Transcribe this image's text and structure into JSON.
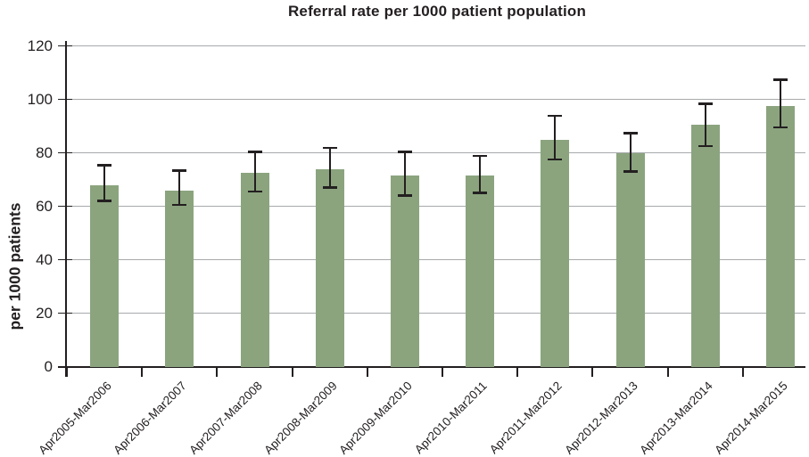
{
  "title": "Referral rate per 1000 patient population",
  "chart_data": {
    "type": "bar",
    "title": "Referral rate per 1000 patient population",
    "xlabel": "",
    "ylabel": "per 1000 patients",
    "ylim": [
      0,
      120
    ],
    "ytick_step": 20,
    "yticks": [
      0,
      20,
      40,
      60,
      80,
      100,
      120
    ],
    "grid": "horizontal",
    "legend": "none",
    "categories": [
      "Apr2005-Mar2006",
      "Apr2006-Mar2007",
      "Apr2007-Mar2008",
      "Apr2008-Mar2009",
      "Apr2009-Mar2010",
      "Apr2010-Mar2011",
      "Apr2011-Mar2012",
      "Apr2012-Mar2013",
      "Apr2013-Mar2014",
      "Apr2014-Mar2015"
    ],
    "values": [
      68,
      66,
      72.5,
      74,
      71.5,
      71.5,
      85,
      80,
      90.5,
      97.5
    ],
    "error_low": [
      62,
      60.5,
      65.5,
      67,
      64,
      65,
      77.5,
      73,
      82.5,
      89.5
    ],
    "error_high": [
      75.5,
      73.5,
      80.5,
      82,
      80.5,
      79,
      94,
      87.5,
      98.5,
      107.5
    ],
    "colors": {
      "bar": "#8ba47e",
      "grid": "#a7a9ac",
      "axis": "#231f20",
      "text": "#231f20",
      "background": "#ffffff"
    }
  }
}
